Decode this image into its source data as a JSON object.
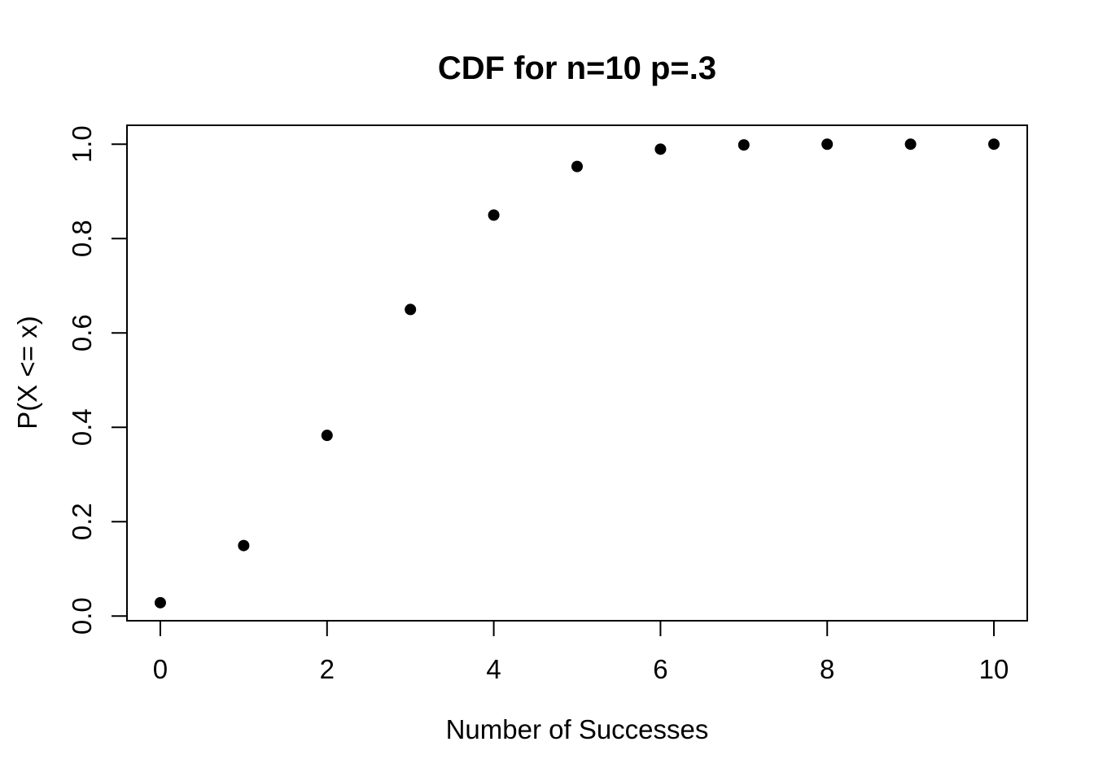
{
  "page": {
    "background_color": "#ffffff",
    "text_color": "#000000"
  },
  "chart_data": {
    "type": "scatter",
    "title": "CDF for n=10 p=.3",
    "xlabel": "Number of Successes",
    "ylabel": "P(X <= x)",
    "x": [
      0,
      1,
      2,
      3,
      4,
      5,
      6,
      7,
      8,
      9,
      10
    ],
    "y": [
      0.0282,
      0.1493,
      0.3828,
      0.6496,
      0.8497,
      0.9527,
      0.9894,
      0.9984,
      0.9999,
      1.0,
      1.0
    ],
    "x_ticks": [
      0,
      2,
      4,
      6,
      8,
      10
    ],
    "y_ticks": [
      0.0,
      0.2,
      0.4,
      0.6,
      0.8,
      1.0
    ],
    "xlim": [
      -0.4,
      10.4
    ],
    "ylim": [
      -0.01,
      1.04
    ],
    "grid": false,
    "legend": "none",
    "marker": "filled-circle",
    "point_color": "#000000",
    "axis_color": "#000000"
  }
}
